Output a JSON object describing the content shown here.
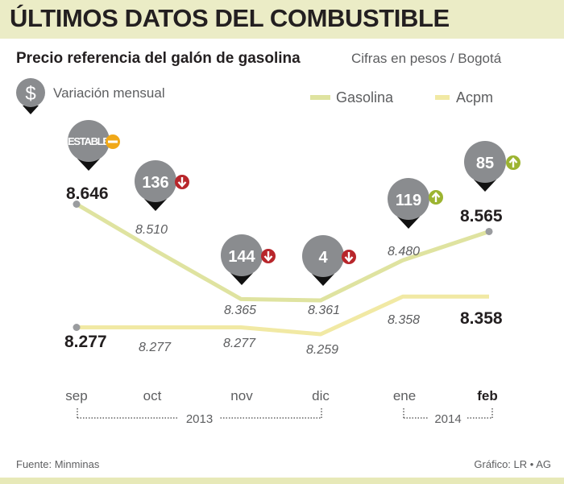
{
  "chart_data": {
    "type": "line",
    "title": "ÚLTIMOS DATOS DEL COMBUSTIBLE",
    "subtitle": "Precio referencia del galón de gasolina",
    "units_note": "Cifras en pesos / Bogotá",
    "categories": [
      "sep",
      "oct",
      "nov",
      "dic",
      "ene",
      "feb"
    ],
    "year_groups": [
      {
        "label": "2013",
        "from": "sep",
        "to": "dic"
      },
      {
        "label": "2014",
        "from": "ene",
        "to": "feb"
      }
    ],
    "series": [
      {
        "name": "Gasolina",
        "color": "#dfe3a0",
        "values": [
          8646,
          8510,
          8365,
          8361,
          8480,
          8565
        ],
        "labels": [
          "8.646",
          "8.510",
          "8.365",
          "8.361",
          "8.480",
          "8.565"
        ]
      },
      {
        "name": "Acpm",
        "color": "#f1e9a4",
        "values": [
          8277,
          8277,
          8277,
          8259,
          8358,
          8358
        ],
        "labels": [
          "8.277",
          "8.277",
          "8.277",
          "8.259",
          "8.358",
          "8.358"
        ]
      }
    ],
    "variation": {
      "legend_label": "Variación mensual",
      "legend_symbol": "$",
      "items": [
        {
          "month": "sep",
          "text": "ESTABLE",
          "direction": "stable"
        },
        {
          "month": "oct",
          "text": "136",
          "direction": "down"
        },
        {
          "month": "nov",
          "text": "144",
          "direction": "down"
        },
        {
          "month": "dic",
          "text": "4",
          "direction": "down"
        },
        {
          "month": "ene",
          "text": "119",
          "direction": "up"
        },
        {
          "month": "feb",
          "text": "85",
          "direction": "up"
        }
      ]
    },
    "ylim": [
      8200,
      8700
    ],
    "source": "Fuente: Minminas",
    "credit": "Gráfico: LR • AG"
  },
  "colors": {
    "header_band": "#ebecc6",
    "bubble": "#8a8c8f",
    "down_arrow": "#b8262b",
    "up_arrow": "#9cb431",
    "stable": "#f0a818",
    "point": "#9a9c9f",
    "text_dark": "#231f20",
    "text_muted": "#5d5e60"
  }
}
